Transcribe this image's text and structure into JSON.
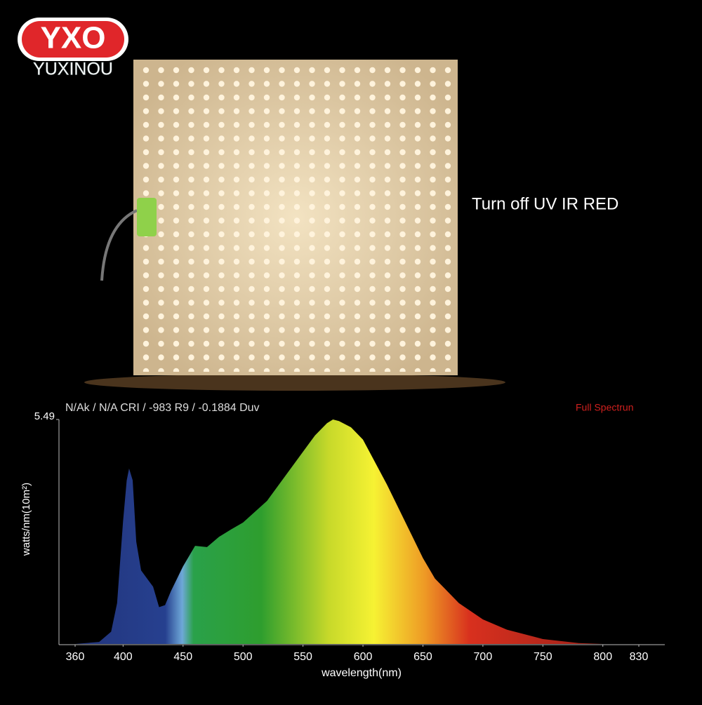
{
  "logo": {
    "mark": "YXO",
    "brand": "YUXINOU"
  },
  "caption": "Turn off UV IR RED",
  "chart_data": {
    "type": "area",
    "title": "N/Ak / N/A CRI / -983 R9 / -0.1884 Duv",
    "legend_label": "Full Spectrun",
    "x_label": "wavelength(nm)",
    "y_label": "watts/nm(10m²)",
    "x": [
      360,
      380,
      390,
      395,
      400,
      403,
      405,
      408,
      411,
      415,
      420,
      425,
      430,
      435,
      440,
      450,
      460,
      470,
      480,
      490,
      500,
      520,
      540,
      550,
      560,
      570,
      575,
      580,
      590,
      600,
      620,
      640,
      650,
      660,
      680,
      700,
      720,
      750,
      780,
      800,
      830
    ],
    "values": [
      0,
      0.05,
      0.3,
      1.0,
      3.0,
      4.0,
      4.29,
      4.0,
      2.5,
      1.8,
      1.6,
      1.4,
      0.9,
      0.95,
      1.3,
      1.9,
      2.4,
      2.37,
      2.62,
      2.8,
      2.97,
      3.5,
      4.3,
      4.7,
      5.1,
      5.4,
      5.49,
      5.45,
      5.3,
      5.0,
      3.9,
      2.7,
      2.1,
      1.6,
      1.0,
      0.6,
      0.35,
      0.12,
      0.02,
      0,
      0
    ],
    "xlim": [
      360,
      830
    ],
    "xticks": [
      360,
      400,
      450,
      500,
      550,
      600,
      650,
      700,
      750,
      800,
      830
    ],
    "ylim": [
      0,
      5.49
    ],
    "yticks": [
      5.49
    ]
  }
}
